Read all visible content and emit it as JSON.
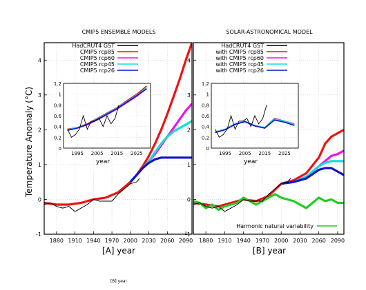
{
  "figure": {
    "ylabel": "Temperature Anomaly (°C)",
    "panels": [
      {
        "title": "CMIP5 ENSEMBLE MODELS",
        "xlabel": "[A]   year",
        "legend": [
          "HadCRUT4 GST",
          "CMIP5 rcp85",
          "CMIP5 rcp60",
          "CMIP5 rcp45",
          "CMIP5 rcp26"
        ],
        "inset_xlabel": "year"
      },
      {
        "title": "SOLAR-ASTRONOMICAL MODEL",
        "xlabel": "[B]   year",
        "legend": [
          "HadCRUT4 GST",
          "with CMIP5 rcp85",
          "with CMIP5 rcp60",
          "with CMIP5 rcp45",
          "with CMIP5 rcp26"
        ],
        "inset_xlabel": "year",
        "extra_legend": "Harmonic natural variability"
      }
    ],
    "stray_label": "[B]   year"
  },
  "chart_data": [
    {
      "type": "line",
      "title": "CMIP5 ENSEMBLE MODELS",
      "xlabel": "[A]   year",
      "ylabel": "Temperature Anomaly (°C)",
      "xlim": [
        1860,
        2100
      ],
      "ylim": [
        -1,
        4.5
      ],
      "xticks": [
        1880,
        1910,
        1940,
        1970,
        2000,
        2030,
        2060,
        2090
      ],
      "yticks": [
        -1,
        0,
        1,
        2,
        3,
        4
      ],
      "grid": true,
      "legend_position": "top-left",
      "colors": {
        "HadCRUT4 GST": "#000000",
        "CMIP5 rcp85": "#ee1111",
        "CMIP5 rcp60": "#ee11ee",
        "CMIP5 rcp45": "#11dddd",
        "CMIP5 rcp26": "#1111cc"
      },
      "series": [
        {
          "name": "HadCRUT4 GST",
          "x": [
            1860,
            1870,
            1880,
            1890,
            1900,
            1910,
            1920,
            1930,
            1940,
            1950,
            1960,
            1970,
            1980,
            1990,
            2000,
            2010,
            2015
          ],
          "y": [
            -0.15,
            -0.1,
            -0.2,
            -0.25,
            -0.2,
            -0.35,
            -0.25,
            -0.15,
            0.0,
            -0.05,
            -0.05,
            -0.05,
            0.15,
            0.3,
            0.45,
            0.5,
            0.6
          ]
        },
        {
          "name": "CMIP5 rcp85",
          "x": [
            1860,
            1880,
            1900,
            1920,
            1940,
            1960,
            1980,
            2000,
            2010,
            2020,
            2030,
            2040,
            2050,
            2060,
            2070,
            2080,
            2090,
            2100
          ],
          "y": [
            -0.1,
            -0.15,
            -0.15,
            -0.1,
            0.0,
            0.05,
            0.2,
            0.5,
            0.7,
            0.95,
            1.25,
            1.6,
            2.0,
            2.45,
            2.95,
            3.45,
            4.0,
            4.5
          ]
        },
        {
          "name": "CMIP5 rcp60",
          "x": [
            2000,
            2010,
            2020,
            2030,
            2040,
            2050,
            2060,
            2070,
            2080,
            2090,
            2100
          ],
          "y": [
            0.5,
            0.7,
            0.9,
            1.1,
            1.3,
            1.55,
            1.8,
            2.05,
            2.3,
            2.55,
            2.75
          ]
        },
        {
          "name": "CMIP5 rcp45",
          "x": [
            2000,
            2010,
            2020,
            2030,
            2040,
            2050,
            2060,
            2070,
            2080,
            2090,
            2100
          ],
          "y": [
            0.5,
            0.7,
            0.9,
            1.1,
            1.35,
            1.6,
            1.8,
            1.95,
            2.05,
            2.15,
            2.25
          ]
        },
        {
          "name": "CMIP5 rcp26",
          "x": [
            2000,
            2010,
            2020,
            2030,
            2040,
            2050,
            2060,
            2070,
            2080,
            2090,
            2100
          ],
          "y": [
            0.5,
            0.7,
            0.9,
            1.05,
            1.15,
            1.2,
            1.2,
            1.2,
            1.2,
            1.2,
            1.2
          ]
        }
      ],
      "inset": {
        "xlim": [
          1988,
          2032
        ],
        "ylim": [
          0,
          1.2
        ],
        "xticks": [
          1995,
          2005,
          2015,
          2025
        ],
        "yticks": [
          0,
          0.2,
          0.4,
          0.6,
          0.8,
          1,
          1.2
        ],
        "xlabel": "year",
        "series": [
          {
            "name": "HadCRUT4 GST",
            "x": [
              1990,
              1992,
              1994,
              1996,
              1998,
              2000,
              2002,
              2004,
              2006,
              2008,
              2010,
              2012,
              2014,
              2016
            ],
            "y": [
              0.35,
              0.2,
              0.25,
              0.35,
              0.6,
              0.35,
              0.5,
              0.5,
              0.55,
              0.4,
              0.6,
              0.45,
              0.55,
              0.8
            ]
          },
          {
            "name": "CMIP5 rcp85",
            "x": [
              1990,
              1995,
              2000,
              2005,
              2010,
              2015,
              2020,
              2025,
              2030
            ],
            "y": [
              0.35,
              0.38,
              0.45,
              0.55,
              0.65,
              0.75,
              0.88,
              1.0,
              1.15
            ]
          },
          {
            "name": "CMIP5 rcp60",
            "x": [
              1990,
              1995,
              2000,
              2005,
              2010,
              2015,
              2020,
              2025,
              2030
            ],
            "y": [
              0.33,
              0.37,
              0.43,
              0.52,
              0.62,
              0.72,
              0.84,
              0.96,
              1.1
            ]
          },
          {
            "name": "CMIP5 rcp45",
            "x": [
              1990,
              1995,
              2000,
              2005,
              2010,
              2015,
              2020,
              2025,
              2030
            ],
            "y": [
              0.34,
              0.38,
              0.44,
              0.54,
              0.64,
              0.74,
              0.86,
              0.98,
              1.12
            ]
          },
          {
            "name": "CMIP5 rcp26",
            "x": [
              1990,
              1995,
              2000,
              2005,
              2010,
              2015,
              2020,
              2025,
              2030
            ],
            "y": [
              0.33,
              0.37,
              0.44,
              0.53,
              0.63,
              0.73,
              0.85,
              0.97,
              1.1
            ]
          }
        ]
      }
    },
    {
      "type": "line",
      "title": "SOLAR-ASTRONOMICAL MODEL",
      "xlabel": "[B]   year",
      "ylabel": "Temperature Anomaly (°C)",
      "xlim": [
        1860,
        2100
      ],
      "ylim": [
        -1,
        4.5
      ],
      "xticks": [
        1880,
        1910,
        1940,
        1970,
        2000,
        2030,
        2060,
        2090
      ],
      "yticks": [
        -1,
        0,
        1,
        2,
        3,
        4
      ],
      "grid": true,
      "legend_position": "top-left",
      "colors": {
        "HadCRUT4 GST": "#000000",
        "with CMIP5 rcp85": "#ee1111",
        "with CMIP5 rcp60": "#ee11ee",
        "with CMIP5 rcp45": "#11dddd",
        "with CMIP5 rcp26": "#1111cc",
        "Harmonic natural variability": "#22cc22"
      },
      "series": [
        {
          "name": "HadCRUT4 GST",
          "x": [
            1860,
            1870,
            1880,
            1890,
            1900,
            1910,
            1920,
            1930,
            1940,
            1950,
            1960,
            1970,
            1980,
            1990,
            2000,
            2010,
            2015
          ],
          "y": [
            -0.15,
            -0.1,
            -0.2,
            -0.25,
            -0.2,
            -0.35,
            -0.25,
            -0.15,
            0.0,
            -0.05,
            -0.05,
            -0.05,
            0.15,
            0.3,
            0.45,
            0.5,
            0.6
          ]
        },
        {
          "name": "with CMIP5 rcp85",
          "x": [
            1860,
            1880,
            1900,
            1920,
            1940,
            1960,
            1980,
            2000,
            2020,
            2040,
            2060,
            2070,
            2080,
            2090,
            2100
          ],
          "y": [
            -0.1,
            -0.15,
            -0.2,
            -0.1,
            0.0,
            -0.05,
            0.1,
            0.45,
            0.55,
            0.75,
            1.2,
            1.6,
            1.8,
            1.9,
            2.0
          ]
        },
        {
          "name": "with CMIP5 rcp60",
          "x": [
            2000,
            2020,
            2040,
            2060,
            2070,
            2080,
            2090,
            2100
          ],
          "y": [
            0.45,
            0.5,
            0.65,
            0.95,
            1.1,
            1.25,
            1.3,
            1.4
          ]
        },
        {
          "name": "with CMIP5 rcp45",
          "x": [
            2000,
            2020,
            2040,
            2060,
            2070,
            2080,
            2090,
            2100
          ],
          "y": [
            0.45,
            0.5,
            0.65,
            0.95,
            1.05,
            1.1,
            1.1,
            1.1
          ]
        },
        {
          "name": "with CMIP5 rcp26",
          "x": [
            2000,
            2020,
            2040,
            2060,
            2070,
            2080,
            2090,
            2100
          ],
          "y": [
            0.45,
            0.5,
            0.6,
            0.85,
            0.9,
            0.9,
            0.8,
            0.7
          ]
        },
        {
          "name": "Harmonic natural variability",
          "x": [
            1860,
            1870,
            1880,
            1890,
            1900,
            1910,
            1920,
            1930,
            1940,
            1950,
            1960,
            1970,
            1980,
            1990,
            2000,
            2010,
            2020,
            2030,
            2040,
            2050,
            2060,
            2070,
            2080,
            2090,
            2100
          ],
          "y": [
            -0.05,
            -0.1,
            -0.25,
            -0.15,
            -0.3,
            -0.2,
            -0.15,
            -0.1,
            0.05,
            -0.05,
            -0.15,
            -0.05,
            0.05,
            0.15,
            0.05,
            0.0,
            -0.05,
            -0.15,
            -0.25,
            -0.1,
            0.05,
            -0.05,
            0.0,
            -0.1,
            -0.1
          ]
        }
      ],
      "inset": {
        "xlim": [
          1988,
          2032
        ],
        "ylim": [
          0,
          1.2
        ],
        "xticks": [
          1995,
          2005,
          2015,
          2025
        ],
        "yticks": [
          0,
          0.2,
          0.4,
          0.6,
          0.8,
          1,
          1.2
        ],
        "xlabel": "year",
        "series": [
          {
            "name": "HadCRUT4 GST",
            "x": [
              1990,
              1992,
              1994,
              1996,
              1998,
              2000,
              2002,
              2004,
              2006,
              2008,
              2010,
              2012,
              2014,
              2016
            ],
            "y": [
              0.35,
              0.2,
              0.25,
              0.35,
              0.6,
              0.35,
              0.5,
              0.5,
              0.55,
              0.4,
              0.6,
              0.45,
              0.55,
              0.8
            ]
          },
          {
            "name": "with CMIP5 rcp85",
            "x": [
              1990,
              1995,
              2000,
              2005,
              2010,
              2015,
              2020,
              2025,
              2030
            ],
            "y": [
              0.3,
              0.35,
              0.45,
              0.5,
              0.42,
              0.38,
              0.55,
              0.5,
              0.45
            ]
          },
          {
            "name": "with CMIP5 rcp60",
            "x": [
              1990,
              1995,
              2000,
              2005,
              2010,
              2015,
              2020,
              2025,
              2030
            ],
            "y": [
              0.29,
              0.34,
              0.44,
              0.49,
              0.41,
              0.37,
              0.53,
              0.49,
              0.43
            ]
          },
          {
            "name": "with CMIP5 rcp45",
            "x": [
              1990,
              1995,
              2000,
              2005,
              2010,
              2015,
              2020,
              2025,
              2030
            ],
            "y": [
              0.3,
              0.35,
              0.45,
              0.5,
              0.42,
              0.38,
              0.54,
              0.5,
              0.44
            ]
          },
          {
            "name": "with CMIP5 rcp26",
            "x": [
              1990,
              1995,
              2000,
              2005,
              2010,
              2015,
              2020,
              2025,
              2030
            ],
            "y": [
              0.29,
              0.34,
              0.44,
              0.49,
              0.41,
              0.37,
              0.52,
              0.48,
              0.42
            ]
          }
        ]
      }
    }
  ]
}
